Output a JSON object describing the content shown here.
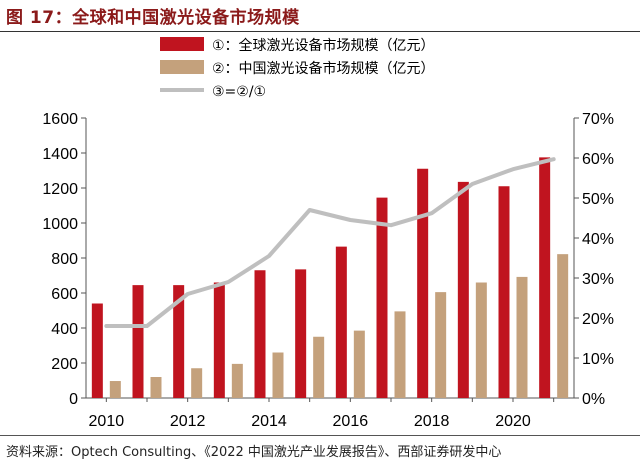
{
  "header": {
    "title": "图 17：全球和中国激光设备市场规模"
  },
  "footer": {
    "source": "资料来源：Optech Consulting、《2022 中国激光产业发展报告》、西部证券研发中心"
  },
  "chart_data": {
    "type": "bar",
    "years": [
      2010,
      2011,
      2012,
      2013,
      2014,
      2015,
      2016,
      2017,
      2018,
      2019,
      2020,
      2021
    ],
    "x_tick_labels": [
      "2010",
      "2012",
      "2014",
      "2016",
      "2018",
      "2020"
    ],
    "y_left_ticks": [
      "0",
      "200",
      "400",
      "600",
      "800",
      "1000",
      "1200",
      "1400",
      "1600"
    ],
    "y_right_ticks": [
      "0%",
      "10%",
      "20%",
      "30%",
      "40%",
      "50%",
      "60%",
      "70%"
    ],
    "ylim_left": [
      0,
      1600
    ],
    "ylim_right": [
      0,
      0.7
    ],
    "grid": false,
    "legend_position": "top-right",
    "series": [
      {
        "name": "①：全球激光设备市场规模（亿元）",
        "type": "bar",
        "axis": "left",
        "color": "#c0141f",
        "values": [
          540,
          645,
          645,
          660,
          730,
          735,
          865,
          1145,
          1310,
          1235,
          1210,
          1375
        ]
      },
      {
        "name": "②：中国激光设备市场规模（亿元）",
        "type": "bar",
        "axis": "left",
        "color": "#c4a17c",
        "values": [
          97,
          120,
          170,
          195,
          260,
          350,
          385,
          495,
          605,
          660,
          692,
          822
        ]
      },
      {
        "name": "③=②/①",
        "type": "line",
        "axis": "right",
        "color": "#bfbfbf",
        "values": [
          0.18,
          0.18,
          0.26,
          0.29,
          0.355,
          0.47,
          0.445,
          0.432,
          0.462,
          0.535,
          0.572,
          0.597
        ]
      }
    ]
  }
}
